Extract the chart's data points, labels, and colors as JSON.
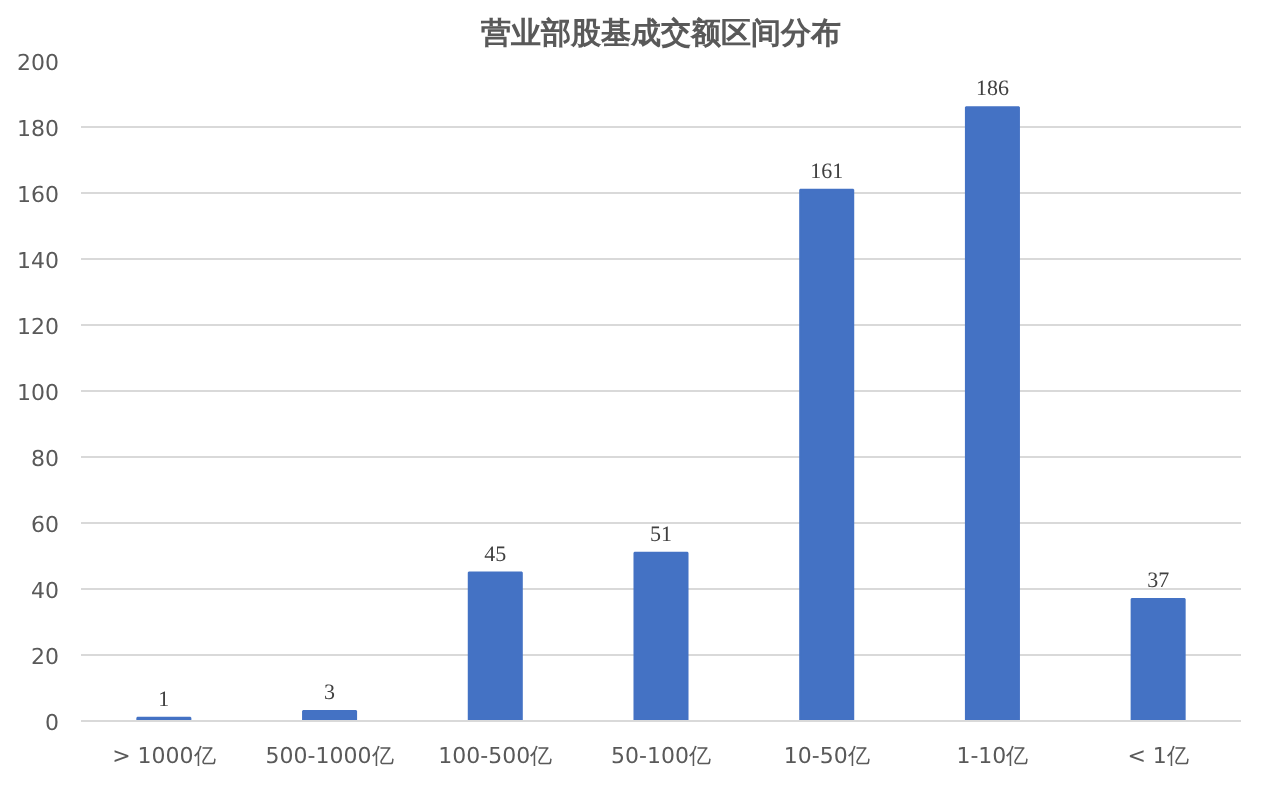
{
  "chart_data": {
    "type": "bar",
    "title": "营业部股基成交额区间分布",
    "categories": [
      "> 1000亿",
      "500-1000亿",
      "100-500亿",
      "50-100亿",
      "10-50亿",
      "1-10亿",
      "< 1亿"
    ],
    "values": [
      1,
      3,
      45,
      51,
      161,
      186,
      37
    ],
    "color": "#4472c4",
    "ylim": [
      0,
      200
    ],
    "yticks": [
      0,
      20,
      40,
      60,
      80,
      100,
      120,
      140,
      160,
      180,
      200
    ],
    "grid": "y",
    "data_labels": true
  }
}
